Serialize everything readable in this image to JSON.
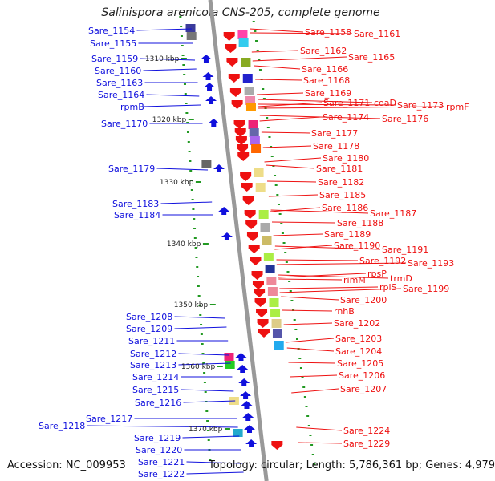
{
  "title": "Salinispora arenicola CNS-205, complete genome",
  "footer": {
    "accession": "Accession: NC_009953",
    "topology": "Topology: circular; Length: 5,786,361 bp; Genes: 4,979"
  },
  "colors": {
    "forward": "#1010dd",
    "reverse": "#ee1111",
    "backbone": "#999999",
    "tick": "#229922"
  },
  "kbp_labels": [
    "1310 kbp",
    "1320 kbp",
    "1330 kbp",
    "1340 kbp",
    "1350 kbp",
    "1360 kbp",
    "1370 kbp"
  ],
  "left_labels": [
    "Sare_1154",
    "Sare_1155",
    "Sare_1159",
    "Sare_1160",
    "Sare_1163",
    "Sare_1164",
    "rpmB",
    "Sare_1170",
    "Sare_1179",
    "Sare_1183",
    "Sare_1184",
    "Sare_1208",
    "Sare_1209",
    "Sare_1211",
    "Sare_1212",
    "Sare_1213",
    "Sare_1214",
    "Sare_1215",
    "Sare_1216",
    "Sare_1217",
    "Sare_1218",
    "Sare_1219",
    "Sare_1220",
    "Sare_1221",
    "Sare_1222"
  ],
  "right_labels": [
    "Sare_1158",
    "Sare_1161",
    "Sare_1162",
    "Sare_1165",
    "Sare_1166",
    "Sare_1168",
    "Sare_1169",
    "Sare_1171",
    "coaD",
    "Sare_1173",
    "rpmF",
    "Sare_1174",
    "Sare_1176",
    "Sare_1177",
    "Sare_1178",
    "Sare_1180",
    "Sare_1181",
    "Sare_1182",
    "Sare_1185",
    "Sare_1186",
    "Sare_1187",
    "Sare_1188",
    "Sare_1189",
    "Sare_1190",
    "Sare_1191",
    "Sare_1192",
    "Sare_1193",
    "rpsP",
    "trmD",
    "rimM",
    "rplS",
    "Sare_1199",
    "Sare_1200",
    "rnhB",
    "Sare_1202",
    "Sare_1203",
    "Sare_1204",
    "Sare_1205",
    "Sare_1206",
    "Sare_1207",
    "Sare_1224",
    "Sare_1229"
  ]
}
